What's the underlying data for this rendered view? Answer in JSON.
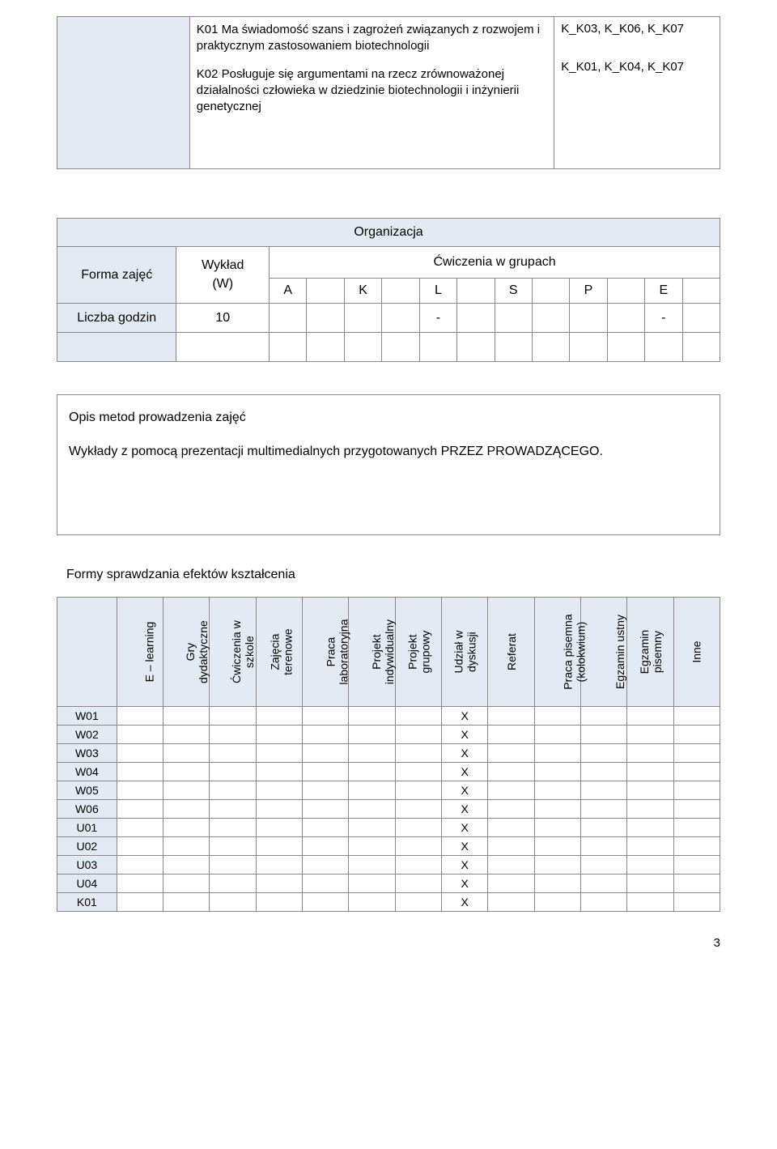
{
  "colors": {
    "header_bg": "#e3eaf3",
    "border": "#888888",
    "page_bg": "#ffffff",
    "text": "#000000"
  },
  "topTable": {
    "rows": [
      {
        "body": "K01 Ma świadomość szans i zagrożeń związanych z rozwojem i praktycznym zastosowaniem biotechnologii",
        "codes": "K_K03, K_K06, K_K07"
      },
      {
        "body": "K02 Posługuje się argumentami na rzecz zrównoważonej działalności człowieka w dziedzinie biotechnologii i inżynierii genetycznej",
        "codes": "K_K01, K_K04, K_K07"
      }
    ]
  },
  "orgTable": {
    "title": "Organizacja",
    "formLabel": "Forma zajęć",
    "lectureLabel": "Wykład",
    "lectureSub": "(W)",
    "groupLabel": "Ćwiczenia w grupach",
    "groupCols": [
      "A",
      "K",
      "L",
      "S",
      "P",
      "E"
    ],
    "hoursLabel": "Liczba godzin",
    "hoursLecture": "10",
    "hoursL": "-",
    "hoursE": "-"
  },
  "opis": {
    "title": "Opis metod prowadzenia zajęć",
    "body": "Wykłady z pomocą prezentacji multimedialnych przygotowanych PRZEZ PROWADZĄCEGO."
  },
  "formy": {
    "title": "Formy sprawdzania efektów kształcenia",
    "columns": [
      "E – learning",
      "Gry\ndydaktyczne",
      "Ćwiczenia w\nszkole",
      "Zajęcia\nterenowe",
      "Praca\nlaboratoryjna",
      "Projekt\nindywidualny",
      "Projekt\ngrupowy",
      "Udział w\ndyskusji",
      "Referat",
      "Praca pisemna\n(kolokwium)",
      "Egzamin ustny",
      "Egzamin\npisemny",
      "Inne"
    ],
    "mark": "X",
    "rows": [
      {
        "label": "W01",
        "checked": [
          7
        ]
      },
      {
        "label": "W02",
        "checked": [
          7
        ]
      },
      {
        "label": "W03",
        "checked": [
          7
        ]
      },
      {
        "label": "W04",
        "checked": [
          7
        ]
      },
      {
        "label": "W05",
        "checked": [
          7
        ]
      },
      {
        "label": "W06",
        "checked": [
          7
        ]
      },
      {
        "label": "U01",
        "checked": [
          7
        ]
      },
      {
        "label": "U02",
        "checked": [
          7
        ]
      },
      {
        "label": "U03",
        "checked": [
          7
        ]
      },
      {
        "label": "U04",
        "checked": [
          7
        ]
      },
      {
        "label": "K01",
        "checked": [
          7
        ]
      }
    ]
  },
  "pageNumber": "3"
}
